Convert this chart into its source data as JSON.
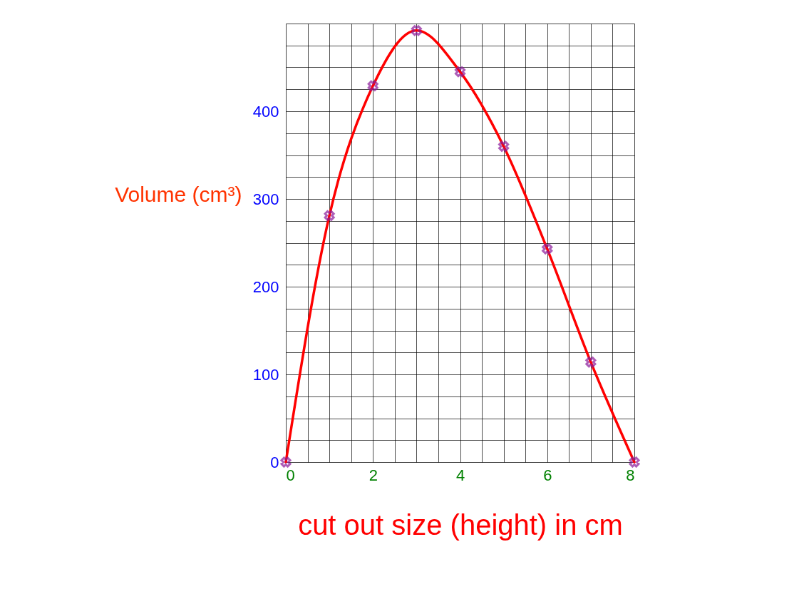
{
  "chart_data": {
    "type": "line",
    "xlabel": "cut out size (height) in cm",
    "ylabel": "Volume (cm³)",
    "x": [
      0,
      1,
      2,
      3,
      4,
      5,
      6,
      7,
      8
    ],
    "series": [
      {
        "type": "line",
        "color": "#ff0000",
        "values": [
          0,
          281,
          429,
          492,
          445,
          360,
          243,
          114,
          0
        ],
        "line_style": "solid",
        "marker": "none"
      },
      {
        "type": "scatter",
        "color": "#8b1a9a",
        "values": [
          0,
          281,
          429,
          492,
          445,
          360,
          243,
          114,
          0
        ],
        "marker": "cross"
      }
    ],
    "xlim": [
      0,
      8
    ],
    "ylim": [
      0,
      500
    ],
    "xticks": [
      0,
      {
        "value": 0.5,
        "label": null
      },
      {
        "value": 1,
        "label": null
      },
      {
        "value": 1.5,
        "label": null
      },
      2,
      {
        "value": 2.5,
        "label": null
      },
      {
        "value": 3,
        "label": null
      },
      {
        "value": 3.5,
        "label": null
      },
      4,
      {
        "value": 4.5,
        "label": null
      },
      {
        "value": 5,
        "label": null
      },
      {
        "value": 5.5,
        "label": null
      },
      6,
      {
        "value": 6.5,
        "label": null
      },
      {
        "value": 7,
        "label": null
      },
      {
        "value": 7.5,
        "label": null
      },
      8
    ],
    "yticks": [
      0,
      {
        "value": 25,
        "label": null
      },
      {
        "value": 50,
        "label": null
      },
      {
        "value": 75,
        "label": null
      },
      100,
      {
        "value": 125,
        "label": null
      },
      {
        "value": 150,
        "label": null
      },
      {
        "value": 175,
        "label": null
      },
      200,
      {
        "value": 225,
        "label": null
      },
      {
        "value": 250,
        "label": null
      },
      {
        "value": 275,
        "label": null
      },
      300,
      {
        "value": 325,
        "label": null
      },
      {
        "value": 350,
        "label": null
      },
      {
        "value": 375,
        "label": null
      },
      400,
      {
        "value": 425,
        "label": null
      },
      {
        "value": 450,
        "label": null
      },
      {
        "value": 475,
        "label": null
      },
      {
        "value": 500,
        "label": null
      }
    ],
    "grid": true
  }
}
